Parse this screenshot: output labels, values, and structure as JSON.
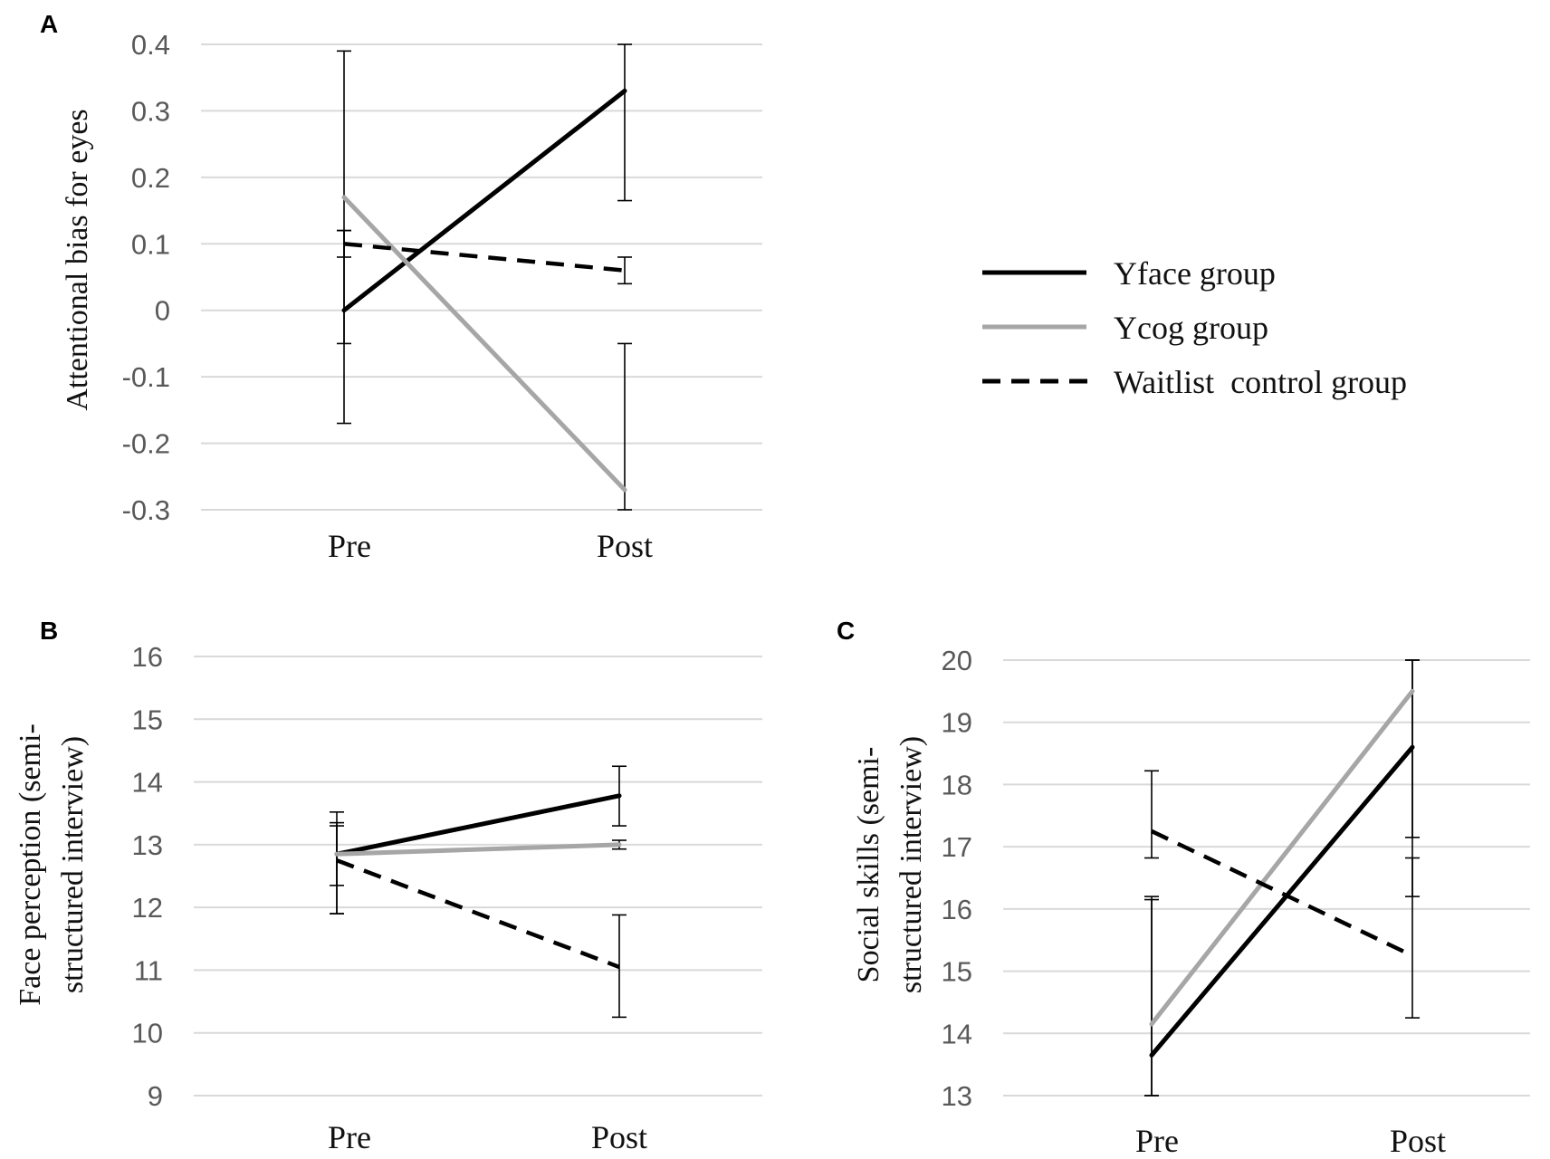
{
  "legend": {
    "entries": [
      {
        "label": "Yface group",
        "color": "#000000",
        "dash": false
      },
      {
        "label": "Ycog group",
        "color": "#a6a6a6",
        "dash": false
      },
      {
        "label": "Waitlist  control group",
        "color": "#000000",
        "dash": true
      }
    ]
  },
  "chart_data": [
    {
      "panel": "A",
      "type": "line",
      "categories": [
        "Pre",
        "Post"
      ],
      "ylabel": "Attentional bias for eyes",
      "ylim": [
        -0.3,
        0.4
      ],
      "yticks": [
        0.4,
        0.3,
        0.2,
        0.1,
        0,
        -0.1,
        -0.2,
        -0.3
      ],
      "ytick_labels": [
        "0.4",
        "0.3",
        "0.2",
        "0.1",
        "0",
        "-0.1",
        "-0.2",
        "-0.3"
      ],
      "series": [
        {
          "name": "Yface group",
          "values": [
            0.0,
            0.33
          ],
          "err_low": [
            -0.17,
            0.165
          ],
          "err_high": [
            0.12,
            0.4
          ]
        },
        {
          "name": "Ycog group",
          "values": [
            0.17,
            -0.27
          ],
          "err_low": [
            -0.05,
            -0.3
          ],
          "err_high": [
            0.39,
            -0.05
          ]
        },
        {
          "name": "Waitlist control group",
          "values": [
            0.1,
            0.06
          ],
          "err_low": [
            0.08,
            0.04
          ],
          "err_high": [
            0.12,
            0.08
          ]
        }
      ]
    },
    {
      "panel": "B",
      "type": "line",
      "categories": [
        "Pre",
        "Post"
      ],
      "ylabel": "Face perception (semi-structured interview)",
      "ylabel_lines": [
        "Face perception (semi-",
        "structured interview)"
      ],
      "ylim": [
        9,
        16
      ],
      "yticks": [
        16,
        15,
        14,
        13,
        12,
        11,
        10,
        9
      ],
      "ytick_labels": [
        "16",
        "15",
        "14",
        "13",
        "12",
        "11",
        "10",
        "9"
      ],
      "series": [
        {
          "name": "Yface group",
          "values": [
            12.85,
            13.78
          ],
          "err_low": [
            12.35,
            13.3
          ],
          "err_high": [
            13.35,
            14.25
          ]
        },
        {
          "name": "Ycog group",
          "values": [
            12.85,
            13.0
          ],
          "err_low": [
            11.9,
            12.93
          ],
          "err_high": [
            13.52,
            13.07
          ]
        },
        {
          "name": "Waitlist control group",
          "values": [
            12.75,
            11.05
          ],
          "err_low": [
            11.9,
            10.25
          ],
          "err_high": [
            13.3,
            11.88
          ]
        }
      ]
    },
    {
      "panel": "C",
      "type": "line",
      "categories": [
        "Pre",
        "Post"
      ],
      "ylabel": "Social skills (semi-structured interview)",
      "ylabel_lines": [
        "Social skills (semi-",
        "structured interview)"
      ],
      "ylim": [
        13,
        20
      ],
      "yticks": [
        20,
        19,
        18,
        17,
        16,
        15,
        14,
        13
      ],
      "ytick_labels": [
        "20",
        "19",
        "18",
        "17",
        "16",
        "15",
        "14",
        "13"
      ],
      "series": [
        {
          "name": "Yface group",
          "values": [
            13.65,
            18.6
          ],
          "err_low": [
            13.0,
            17.15
          ],
          "err_high": [
            16.2,
            20.0
          ]
        },
        {
          "name": "Ycog group",
          "values": [
            14.15,
            19.5
          ],
          "err_low": [
            13.0,
            16.2
          ],
          "err_high": [
            16.15,
            20.0
          ]
        },
        {
          "name": "Waitlist control group",
          "values": [
            17.25,
            15.25
          ],
          "err_low": [
            16.82,
            14.25
          ],
          "err_high": [
            18.22,
            16.82
          ]
        }
      ]
    }
  ]
}
